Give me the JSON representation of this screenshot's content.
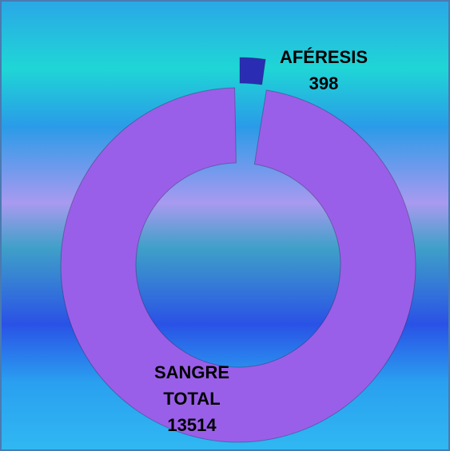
{
  "chart_data": {
    "type": "donut",
    "categories": [
      "AFÉRESIS",
      "SANGRE TOTAL"
    ],
    "values": [
      398,
      13514
    ],
    "colors": [
      "#2a2db4",
      "#9a5fe8"
    ],
    "exploded": [
      true,
      false
    ]
  }
}
